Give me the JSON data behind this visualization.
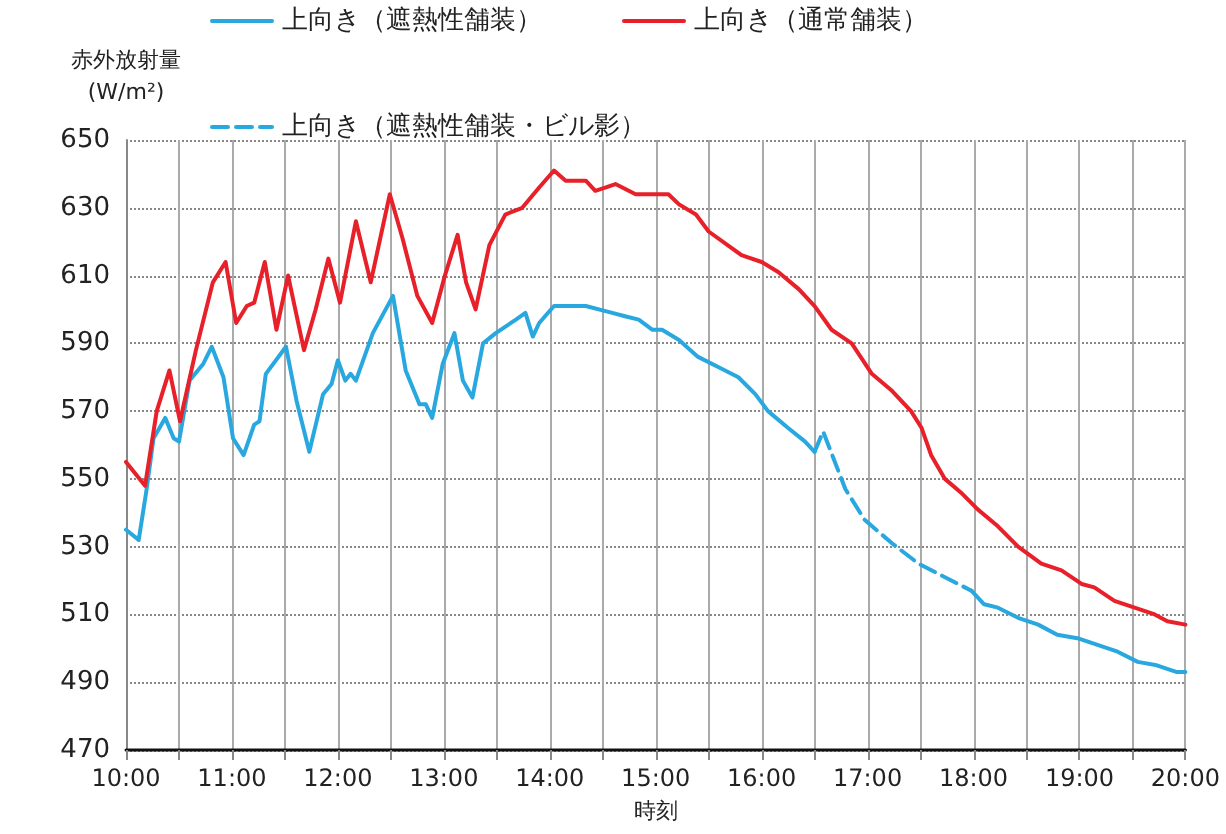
{
  "chart_data": {
    "type": "line",
    "xlabel": "時刻",
    "ylabel": "赤外放射量\n(W/m²)",
    "xlim": [
      10,
      20
    ],
    "ylim": [
      470,
      650
    ],
    "xticks": [
      {
        "value": 10,
        "label": "10:00"
      },
      {
        "value": 10.5,
        "label": null
      },
      {
        "value": 11,
        "label": "11:00"
      },
      {
        "value": 11.5,
        "label": null
      },
      {
        "value": 12,
        "label": "12:00"
      },
      {
        "value": 12.5,
        "label": null
      },
      {
        "value": 13,
        "label": "13:00"
      },
      {
        "value": 13.5,
        "label": null
      },
      {
        "value": 14,
        "label": "14:00"
      },
      {
        "value": 14.5,
        "label": null
      },
      {
        "value": 15,
        "label": "15:00"
      },
      {
        "value": 15.5,
        "label": null
      },
      {
        "value": 16,
        "label": "16:00"
      },
      {
        "value": 16.5,
        "label": null
      },
      {
        "value": 17,
        "label": "17:00"
      },
      {
        "value": 17.5,
        "label": null
      },
      {
        "value": 18,
        "label": "18:00"
      },
      {
        "value": 18.5,
        "label": null
      },
      {
        "value": 19,
        "label": "19:00"
      },
      {
        "value": 19.5,
        "label": null
      },
      {
        "value": 20,
        "label": "20:00"
      }
    ],
    "yticks": [
      470,
      490,
      510,
      530,
      550,
      570,
      590,
      610,
      630,
      650
    ],
    "grid": true,
    "legend": "top",
    "marker": "none",
    "series": [
      {
        "name": "上向き（遮熱性舗装）",
        "color": "#29a8e0",
        "line_style": "solid",
        "x": [
          10.0,
          10.12,
          10.19,
          10.26,
          10.37,
          10.45,
          10.5,
          10.6,
          10.73,
          10.81,
          10.92,
          11.01,
          11.11,
          11.21,
          11.26,
          11.32,
          11.51,
          11.61,
          11.73,
          11.86,
          11.94,
          12.0,
          12.07,
          12.12,
          12.17,
          12.33,
          12.52,
          12.64,
          12.77,
          12.83,
          12.89,
          12.99,
          13.1,
          13.18,
          13.27,
          13.37,
          13.49,
          13.68,
          13.77,
          13.84,
          13.9,
          14.04,
          14.34,
          14.59,
          14.71,
          14.84,
          14.97,
          15.06,
          15.22,
          15.4,
          15.59,
          15.78,
          15.94,
          16.06,
          16.25,
          16.41,
          16.5,
          17.0,
          17.98,
          18.1,
          18.23,
          18.42,
          18.61,
          18.79,
          18.98,
          19.17,
          19.36,
          19.55,
          19.73,
          19.92,
          20.0
        ],
        "values": [
          535,
          532,
          546,
          562,
          568,
          562,
          561,
          579,
          584,
          589,
          580,
          562,
          557,
          566,
          567,
          581,
          589,
          573,
          558,
          575,
          578,
          585,
          579,
          581,
          579,
          593,
          604,
          582,
          572,
          572,
          568,
          584,
          593,
          579,
          574,
          590,
          593,
          597,
          599,
          592,
          596,
          601,
          601,
          599,
          598,
          597,
          594,
          594,
          591,
          586,
          583,
          580,
          575,
          570,
          565,
          561,
          558,
          null,
          517,
          513,
          512,
          509,
          507,
          504,
          503,
          501,
          499,
          496,
          495,
          493,
          493
        ]
      },
      {
        "name": "上向き（通常舗装）",
        "color": "#e8202a",
        "line_style": "solid",
        "x": [
          10.0,
          10.18,
          10.29,
          10.41,
          10.51,
          10.66,
          10.82,
          10.94,
          11.04,
          11.14,
          11.21,
          11.31,
          11.42,
          11.53,
          11.68,
          11.79,
          11.91,
          12.02,
          12.17,
          12.31,
          12.49,
          12.61,
          12.75,
          12.89,
          13.01,
          13.13,
          13.21,
          13.3,
          13.43,
          13.58,
          13.74,
          13.9,
          14.04,
          14.15,
          14.34,
          14.43,
          14.53,
          14.62,
          14.81,
          15.0,
          15.12,
          15.22,
          15.38,
          15.5,
          15.81,
          16.0,
          16.16,
          16.35,
          16.5,
          16.66,
          16.85,
          17.04,
          17.23,
          17.41,
          17.51,
          17.6,
          17.73,
          17.88,
          18.04,
          18.23,
          18.42,
          18.64,
          18.83,
          19.02,
          19.14,
          19.33,
          19.52,
          19.71,
          19.83,
          20.0
        ],
        "values": [
          555,
          548,
          570,
          582,
          567,
          588,
          608,
          614,
          596,
          601,
          602,
          614,
          594,
          610,
          588,
          600,
          615,
          602,
          626,
          608,
          634,
          621,
          604,
          596,
          610,
          622,
          608,
          600,
          619,
          628,
          630,
          636,
          641,
          638,
          638,
          635,
          636,
          637,
          634,
          634,
          634,
          631,
          628,
          623,
          616,
          614,
          611,
          606,
          601,
          594,
          590,
          581,
          576,
          570,
          565,
          557,
          550,
          546,
          541,
          536,
          530,
          525,
          523,
          519,
          518,
          514,
          512,
          510,
          508,
          507
        ]
      },
      {
        "name": "上向き（遮熱性舗装・ビル影）",
        "color": "#29a8e0",
        "line_style": "dashed",
        "x": [
          16.5,
          16.58,
          16.79,
          16.97,
          17.23,
          17.48,
          17.73,
          17.98
        ],
        "values": [
          558,
          564,
          547,
          538,
          531,
          525,
          521,
          517
        ]
      }
    ]
  }
}
